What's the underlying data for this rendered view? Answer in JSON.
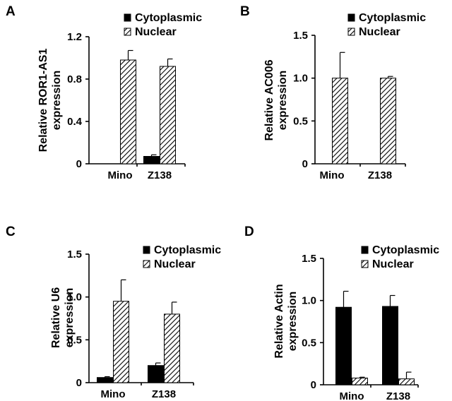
{
  "figure": {
    "series_colors": {
      "Cytoplasmic": "#000000",
      "Nuclear": "hatched"
    },
    "panels_order": [
      "A",
      "B",
      "C",
      "D"
    ]
  },
  "chart_data": [
    {
      "panel": "A",
      "type": "bar",
      "ylabel": [
        "Relative ROR1-AS1",
        "expression"
      ],
      "ylim": [
        0,
        1.2
      ],
      "yticks": [
        "0",
        "0.4",
        "0.8",
        "1.2"
      ],
      "yticks_values": [
        0,
        0.4,
        0.8,
        1.2
      ],
      "categories": [
        "Mino",
        "Z138"
      ],
      "legend": [
        "Cytoplasmic",
        "Nuclear"
      ],
      "series": [
        {
          "name": "Cytoplasmic",
          "values": [
            0,
            0.07
          ],
          "errors": [
            0,
            0.015
          ]
        },
        {
          "name": "Nuclear",
          "values": [
            0.98,
            0.92
          ],
          "errors": [
            0.09,
            0.07
          ]
        }
      ]
    },
    {
      "panel": "B",
      "type": "bar",
      "ylabel": [
        "Relative AC006",
        "expression"
      ],
      "ylim": [
        0,
        1.5
      ],
      "yticks": [
        "0",
        "0.5",
        "1.0",
        "1.5"
      ],
      "yticks_values": [
        0,
        0.5,
        1.0,
        1.5
      ],
      "categories": [
        "Mino",
        "Z138"
      ],
      "legend": [
        "Cytoplasmic",
        "Nuclear"
      ],
      "series": [
        {
          "name": "Cytoplasmic",
          "values": [
            0,
            0
          ],
          "errors": [
            0,
            0
          ]
        },
        {
          "name": "Nuclear",
          "values": [
            1.0,
            1.0
          ],
          "errors": [
            0.3,
            0.02
          ]
        }
      ]
    },
    {
      "panel": "C",
      "type": "bar",
      "ylabel": [
        "Relative U6",
        "expression"
      ],
      "ylim": [
        0,
        1.5
      ],
      "yticks": [
        "0",
        "0.5",
        "1.0",
        "1.5"
      ],
      "yticks_values": [
        0,
        0.5,
        1.0,
        1.5
      ],
      "categories": [
        "Mino",
        "Z138"
      ],
      "legend": [
        "Cytoplasmic",
        "Nuclear"
      ],
      "series": [
        {
          "name": "Cytoplasmic",
          "values": [
            0.06,
            0.2
          ],
          "errors": [
            0.01,
            0.03
          ]
        },
        {
          "name": "Nuclear",
          "values": [
            0.95,
            0.8
          ],
          "errors": [
            0.25,
            0.14
          ]
        }
      ]
    },
    {
      "panel": "D",
      "type": "bar",
      "ylabel": [
        "Relative Actin",
        "expression"
      ],
      "ylim": [
        0,
        1.5
      ],
      "yticks": [
        "0",
        "0.5",
        "1.0",
        "1.5"
      ],
      "yticks_values": [
        0,
        0.5,
        1.0,
        1.5
      ],
      "categories": [
        "Mino",
        "Z138"
      ],
      "legend": [
        "Cytoplasmic",
        "Nuclear"
      ],
      "series": [
        {
          "name": "Cytoplasmic",
          "values": [
            0.92,
            0.93
          ],
          "errors": [
            0.19,
            0.13
          ]
        },
        {
          "name": "Nuclear",
          "values": [
            0.08,
            0.07
          ],
          "errors": [
            0.01,
            0.08
          ]
        }
      ]
    }
  ]
}
